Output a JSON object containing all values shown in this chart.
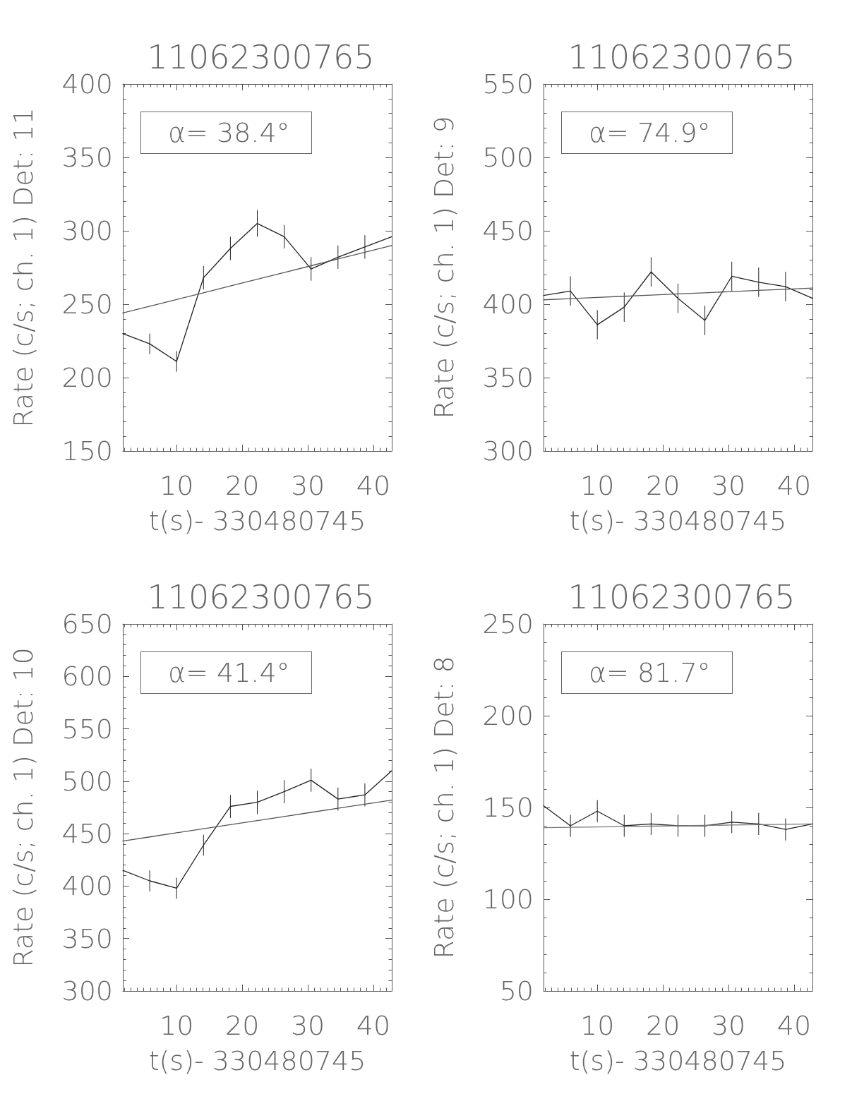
{
  "chart_data": [
    {
      "type": "line",
      "title": "11062300765",
      "xlabel": "t(s)- 330480745",
      "ylabel": "Rate (c/s; ch. 1) Det: 11",
      "annotations": [
        "α= 38.4°"
      ],
      "marker": "none",
      "x": [
        1.8,
        5.9,
        10.0,
        14.1,
        18.2,
        22.3,
        26.4,
        30.5,
        34.6,
        38.7,
        42.8
      ],
      "series": [
        {
          "color": "#222222",
          "values": [
            230,
            223,
            211,
            268,
            288,
            305,
            296,
            274,
            282,
            289,
            296
          ],
          "errors": [
            null,
            7,
            7,
            8,
            8,
            9,
            8,
            8,
            8,
            8,
            null
          ]
        },
        {
          "color": "#555555",
          "x": [
            1.8,
            5.9,
            10.0,
            14.1,
            18.2,
            22.3,
            26.4,
            30.5,
            34.6,
            38.7,
            42.8
          ],
          "values": [
            244.0,
            248.6,
            253.2,
            257.8,
            262.4,
            267.0,
            271.6,
            276.2,
            280.8,
            285.4,
            290.0
          ]
        }
      ],
      "xlim": [
        1.8,
        42.8
      ],
      "xticks": [
        {
          "value": 2,
          "label": null
        },
        {
          "value": 3,
          "label": null
        },
        {
          "value": 4,
          "label": null
        },
        {
          "value": 5,
          "label": null
        },
        {
          "value": 6,
          "label": null
        },
        {
          "value": 7,
          "label": null
        },
        {
          "value": 8,
          "label": null
        },
        {
          "value": 9,
          "label": null
        },
        10,
        {
          "value": 11,
          "label": null
        },
        {
          "value": 12,
          "label": null
        },
        {
          "value": 13,
          "label": null
        },
        {
          "value": 14,
          "label": null
        },
        {
          "value": 15,
          "label": null
        },
        {
          "value": 16,
          "label": null
        },
        {
          "value": 17,
          "label": null
        },
        {
          "value": 18,
          "label": null
        },
        {
          "value": 19,
          "label": null
        },
        20,
        {
          "value": 21,
          "label": null
        },
        {
          "value": 22,
          "label": null
        },
        {
          "value": 23,
          "label": null
        },
        {
          "value": 24,
          "label": null
        },
        {
          "value": 25,
          "label": null
        },
        {
          "value": 26,
          "label": null
        },
        {
          "value": 27,
          "label": null
        },
        {
          "value": 28,
          "label": null
        },
        {
          "value": 29,
          "label": null
        },
        30,
        {
          "value": 31,
          "label": null
        },
        {
          "value": 32,
          "label": null
        },
        {
          "value": 33,
          "label": null
        },
        {
          "value": 34,
          "label": null
        },
        {
          "value": 35,
          "label": null
        },
        {
          "value": 36,
          "label": null
        },
        {
          "value": 37,
          "label": null
        },
        {
          "value": 38,
          "label": null
        },
        {
          "value": 39,
          "label": null
        },
        40,
        {
          "value": 41,
          "label": null
        },
        {
          "value": 42,
          "label": null
        }
      ],
      "ylim": [
        150,
        400
      ],
      "yticks": [
        150,
        {
          "value": 160,
          "label": null
        },
        {
          "value": 170,
          "label": null
        },
        {
          "value": 180,
          "label": null
        },
        {
          "value": 190,
          "label": null
        },
        200,
        {
          "value": 210,
          "label": null
        },
        {
          "value": 220,
          "label": null
        },
        {
          "value": 230,
          "label": null
        },
        {
          "value": 240,
          "label": null
        },
        250,
        {
          "value": 260,
          "label": null
        },
        {
          "value": 270,
          "label": null
        },
        {
          "value": 280,
          "label": null
        },
        {
          "value": 290,
          "label": null
        },
        300,
        {
          "value": 310,
          "label": null
        },
        {
          "value": 320,
          "label": null
        },
        {
          "value": 330,
          "label": null
        },
        {
          "value": 340,
          "label": null
        },
        350,
        {
          "value": 360,
          "label": null
        },
        {
          "value": 370,
          "label": null
        },
        {
          "value": 380,
          "label": null
        },
        {
          "value": 390,
          "label": null
        },
        400
      ]
    },
    {
      "type": "line",
      "title": "11062300765",
      "xlabel": "t(s)- 330480745",
      "ylabel": "Rate (c/s; ch. 1) Det: 9",
      "annotations": [
        "α= 74.9°"
      ],
      "marker": "none",
      "x": [
        1.8,
        5.9,
        10.0,
        14.1,
        18.2,
        22.3,
        26.4,
        30.5,
        34.6,
        38.7,
        42.8
      ],
      "series": [
        {
          "color": "#222222",
          "values": [
            406,
            409,
            386,
            398,
            422,
            404,
            389,
            419,
            415,
            412,
            404
          ],
          "errors": [
            null,
            10,
            10,
            10,
            10,
            10,
            10,
            10,
            10,
            10,
            null
          ]
        },
        {
          "color": "#555555",
          "x": [
            1.8,
            5.9,
            10.0,
            14.1,
            18.2,
            22.3,
            26.4,
            30.5,
            34.6,
            38.7,
            42.8
          ],
          "values": [
            403.0,
            403.8,
            404.6,
            405.4,
            406.2,
            407.0,
            407.8,
            408.6,
            409.4,
            410.2,
            411.0
          ]
        }
      ],
      "xlim": [
        1.8,
        42.8
      ],
      "xticks": [
        {
          "value": 2,
          "label": null
        },
        {
          "value": 3,
          "label": null
        },
        {
          "value": 4,
          "label": null
        },
        {
          "value": 5,
          "label": null
        },
        {
          "value": 6,
          "label": null
        },
        {
          "value": 7,
          "label": null
        },
        {
          "value": 8,
          "label": null
        },
        {
          "value": 9,
          "label": null
        },
        10,
        {
          "value": 11,
          "label": null
        },
        {
          "value": 12,
          "label": null
        },
        {
          "value": 13,
          "label": null
        },
        {
          "value": 14,
          "label": null
        },
        {
          "value": 15,
          "label": null
        },
        {
          "value": 16,
          "label": null
        },
        {
          "value": 17,
          "label": null
        },
        {
          "value": 18,
          "label": null
        },
        {
          "value": 19,
          "label": null
        },
        20,
        {
          "value": 21,
          "label": null
        },
        {
          "value": 22,
          "label": null
        },
        {
          "value": 23,
          "label": null
        },
        {
          "value": 24,
          "label": null
        },
        {
          "value": 25,
          "label": null
        },
        {
          "value": 26,
          "label": null
        },
        {
          "value": 27,
          "label": null
        },
        {
          "value": 28,
          "label": null
        },
        {
          "value": 29,
          "label": null
        },
        30,
        {
          "value": 31,
          "label": null
        },
        {
          "value": 32,
          "label": null
        },
        {
          "value": 33,
          "label": null
        },
        {
          "value": 34,
          "label": null
        },
        {
          "value": 35,
          "label": null
        },
        {
          "value": 36,
          "label": null
        },
        {
          "value": 37,
          "label": null
        },
        {
          "value": 38,
          "label": null
        },
        {
          "value": 39,
          "label": null
        },
        40,
        {
          "value": 41,
          "label": null
        },
        {
          "value": 42,
          "label": null
        }
      ],
      "ylim": [
        300,
        550
      ],
      "yticks": [
        300,
        {
          "value": 310,
          "label": null
        },
        {
          "value": 320,
          "label": null
        },
        {
          "value": 330,
          "label": null
        },
        {
          "value": 340,
          "label": null
        },
        350,
        {
          "value": 360,
          "label": null
        },
        {
          "value": 370,
          "label": null
        },
        {
          "value": 380,
          "label": null
        },
        {
          "value": 390,
          "label": null
        },
        400,
        {
          "value": 410,
          "label": null
        },
        {
          "value": 420,
          "label": null
        },
        {
          "value": 430,
          "label": null
        },
        {
          "value": 440,
          "label": null
        },
        450,
        {
          "value": 460,
          "label": null
        },
        {
          "value": 470,
          "label": null
        },
        {
          "value": 480,
          "label": null
        },
        {
          "value": 490,
          "label": null
        },
        500,
        {
          "value": 510,
          "label": null
        },
        {
          "value": 520,
          "label": null
        },
        {
          "value": 530,
          "label": null
        },
        {
          "value": 540,
          "label": null
        },
        550
      ]
    },
    {
      "type": "line",
      "title": "11062300765",
      "xlabel": "t(s)- 330480745",
      "ylabel": "Rate (c/s; ch. 1) Det: 10",
      "annotations": [
        "α= 41.4°"
      ],
      "marker": "none",
      "x": [
        1.8,
        5.9,
        10.0,
        14.1,
        18.2,
        22.3,
        26.4,
        30.5,
        34.6,
        38.7,
        42.8
      ],
      "series": [
        {
          "color": "#222222",
          "values": [
            415,
            405,
            398,
            439,
            476,
            480,
            490,
            501,
            483,
            487,
            510
          ],
          "errors": [
            null,
            10,
            10,
            10,
            11,
            11,
            11,
            11,
            11,
            11,
            null
          ]
        },
        {
          "color": "#555555",
          "x": [
            1.8,
            5.9,
            10.0,
            14.1,
            18.2,
            22.3,
            26.4,
            30.5,
            34.6,
            38.7,
            42.8
          ],
          "values": [
            443.0,
            446.9,
            450.8,
            454.7,
            458.6,
            462.5,
            466.4,
            470.3,
            474.2,
            478.1,
            482.0
          ]
        }
      ],
      "xlim": [
        1.8,
        42.8
      ],
      "xticks": [
        {
          "value": 2,
          "label": null
        },
        {
          "value": 3,
          "label": null
        },
        {
          "value": 4,
          "label": null
        },
        {
          "value": 5,
          "label": null
        },
        {
          "value": 6,
          "label": null
        },
        {
          "value": 7,
          "label": null
        },
        {
          "value": 8,
          "label": null
        },
        {
          "value": 9,
          "label": null
        },
        10,
        {
          "value": 11,
          "label": null
        },
        {
          "value": 12,
          "label": null
        },
        {
          "value": 13,
          "label": null
        },
        {
          "value": 14,
          "label": null
        },
        {
          "value": 15,
          "label": null
        },
        {
          "value": 16,
          "label": null
        },
        {
          "value": 17,
          "label": null
        },
        {
          "value": 18,
          "label": null
        },
        {
          "value": 19,
          "label": null
        },
        20,
        {
          "value": 21,
          "label": null
        },
        {
          "value": 22,
          "label": null
        },
        {
          "value": 23,
          "label": null
        },
        {
          "value": 24,
          "label": null
        },
        {
          "value": 25,
          "label": null
        },
        {
          "value": 26,
          "label": null
        },
        {
          "value": 27,
          "label": null
        },
        {
          "value": 28,
          "label": null
        },
        {
          "value": 29,
          "label": null
        },
        30,
        {
          "value": 31,
          "label": null
        },
        {
          "value": 32,
          "label": null
        },
        {
          "value": 33,
          "label": null
        },
        {
          "value": 34,
          "label": null
        },
        {
          "value": 35,
          "label": null
        },
        {
          "value": 36,
          "label": null
        },
        {
          "value": 37,
          "label": null
        },
        {
          "value": 38,
          "label": null
        },
        {
          "value": 39,
          "label": null
        },
        40,
        {
          "value": 41,
          "label": null
        },
        {
          "value": 42,
          "label": null
        }
      ],
      "ylim": [
        300,
        650
      ],
      "yticks": [
        300,
        {
          "value": 310,
          "label": null
        },
        {
          "value": 320,
          "label": null
        },
        {
          "value": 330,
          "label": null
        },
        {
          "value": 340,
          "label": null
        },
        350,
        {
          "value": 360,
          "label": null
        },
        {
          "value": 370,
          "label": null
        },
        {
          "value": 380,
          "label": null
        },
        {
          "value": 390,
          "label": null
        },
        400,
        {
          "value": 410,
          "label": null
        },
        {
          "value": 420,
          "label": null
        },
        {
          "value": 430,
          "label": null
        },
        {
          "value": 440,
          "label": null
        },
        450,
        {
          "value": 460,
          "label": null
        },
        {
          "value": 470,
          "label": null
        },
        {
          "value": 480,
          "label": null
        },
        {
          "value": 490,
          "label": null
        },
        500,
        {
          "value": 510,
          "label": null
        },
        {
          "value": 520,
          "label": null
        },
        {
          "value": 530,
          "label": null
        },
        {
          "value": 540,
          "label": null
        },
        550,
        {
          "value": 560,
          "label": null
        },
        {
          "value": 570,
          "label": null
        },
        {
          "value": 580,
          "label": null
        },
        {
          "value": 590,
          "label": null
        },
        600,
        {
          "value": 610,
          "label": null
        },
        {
          "value": 620,
          "label": null
        },
        {
          "value": 630,
          "label": null
        },
        {
          "value": 640,
          "label": null
        },
        650
      ]
    },
    {
      "type": "line",
      "title": "11062300765",
      "xlabel": "t(s)- 330480745",
      "ylabel": "Rate (c/s; ch. 1) Det: 8",
      "annotations": [
        "α= 81.7°"
      ],
      "marker": "none",
      "x": [
        1.8,
        5.9,
        10.0,
        14.1,
        18.2,
        22.3,
        26.4,
        30.5,
        34.6,
        38.7,
        42.8
      ],
      "series": [
        {
          "color": "#222222",
          "values": [
            151,
            140,
            148,
            140,
            141,
            140,
            140,
            142,
            141,
            138,
            141
          ],
          "errors": [
            null,
            6,
            6,
            6,
            6,
            6,
            6,
            6,
            6,
            6,
            null
          ]
        },
        {
          "color": "#777777",
          "x": [
            1.8,
            5.9,
            10.0,
            14.1,
            18.2,
            22.3,
            26.4,
            30.5,
            34.6,
            38.7,
            42.8
          ],
          "values": [
            139.0,
            139.2,
            139.4,
            139.6,
            139.8,
            140.0,
            140.2,
            140.4,
            140.6,
            140.8,
            141.0
          ]
        }
      ],
      "xlim": [
        1.8,
        42.8
      ],
      "xticks": [
        {
          "value": 2,
          "label": null
        },
        {
          "value": 3,
          "label": null
        },
        {
          "value": 4,
          "label": null
        },
        {
          "value": 5,
          "label": null
        },
        {
          "value": 6,
          "label": null
        },
        {
          "value": 7,
          "label": null
        },
        {
          "value": 8,
          "label": null
        },
        {
          "value": 9,
          "label": null
        },
        10,
        {
          "value": 11,
          "label": null
        },
        {
          "value": 12,
          "label": null
        },
        {
          "value": 13,
          "label": null
        },
        {
          "value": 14,
          "label": null
        },
        {
          "value": 15,
          "label": null
        },
        {
          "value": 16,
          "label": null
        },
        {
          "value": 17,
          "label": null
        },
        {
          "value": 18,
          "label": null
        },
        {
          "value": 19,
          "label": null
        },
        20,
        {
          "value": 21,
          "label": null
        },
        {
          "value": 22,
          "label": null
        },
        {
          "value": 23,
          "label": null
        },
        {
          "value": 24,
          "label": null
        },
        {
          "value": 25,
          "label": null
        },
        {
          "value": 26,
          "label": null
        },
        {
          "value": 27,
          "label": null
        },
        {
          "value": 28,
          "label": null
        },
        {
          "value": 29,
          "label": null
        },
        30,
        {
          "value": 31,
          "label": null
        },
        {
          "value": 32,
          "label": null
        },
        {
          "value": 33,
          "label": null
        },
        {
          "value": 34,
          "label": null
        },
        {
          "value": 35,
          "label": null
        },
        {
          "value": 36,
          "label": null
        },
        {
          "value": 37,
          "label": null
        },
        {
          "value": 38,
          "label": null
        },
        {
          "value": 39,
          "label": null
        },
        40,
        {
          "value": 41,
          "label": null
        },
        {
          "value": 42,
          "label": null
        }
      ],
      "ylim": [
        50,
        250
      ],
      "yticks": [
        50,
        {
          "value": 60,
          "label": null
        },
        {
          "value": 70,
          "label": null
        },
        {
          "value": 80,
          "label": null
        },
        {
          "value": 90,
          "label": null
        },
        100,
        {
          "value": 110,
          "label": null
        },
        {
          "value": 120,
          "label": null
        },
        {
          "value": 130,
          "label": null
        },
        {
          "value": 140,
          "label": null
        },
        150,
        {
          "value": 160,
          "label": null
        },
        {
          "value": 170,
          "label": null
        },
        {
          "value": 180,
          "label": null
        },
        {
          "value": 190,
          "label": null
        },
        200,
        {
          "value": 210,
          "label": null
        },
        {
          "value": 220,
          "label": null
        },
        {
          "value": 230,
          "label": null
        },
        {
          "value": 240,
          "label": null
        },
        250
      ]
    }
  ]
}
